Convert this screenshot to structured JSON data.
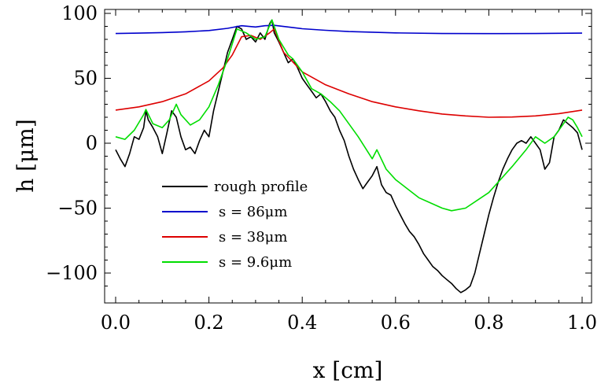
{
  "chart_data": {
    "type": "line",
    "title": "",
    "xlabel": "x [cm]",
    "ylabel": "h [μm]",
    "xlim": [
      0.0,
      1.0
    ],
    "ylim": [
      -120,
      100
    ],
    "xticks": [
      0.0,
      0.2,
      0.4,
      0.6,
      0.8,
      1.0
    ],
    "xtick_labels": [
      "0.0",
      "0.2",
      "0.4",
      "0.6",
      "0.8",
      "1.0"
    ],
    "yticks": [
      100,
      50,
      0,
      -50,
      -100
    ],
    "ytick_labels": [
      "100",
      "50",
      "0",
      "−50",
      "−100"
    ],
    "grid": false,
    "legend_position": "lower-left",
    "series": [
      {
        "name": "rough profile",
        "color": "#000000",
        "x": [
          0.0,
          0.01,
          0.02,
          0.03,
          0.04,
          0.05,
          0.06,
          0.065,
          0.07,
          0.08,
          0.09,
          0.1,
          0.11,
          0.12,
          0.13,
          0.14,
          0.15,
          0.16,
          0.17,
          0.18,
          0.19,
          0.2,
          0.21,
          0.22,
          0.23,
          0.24,
          0.25,
          0.26,
          0.27,
          0.28,
          0.29,
          0.3,
          0.31,
          0.32,
          0.33,
          0.335,
          0.34,
          0.35,
          0.36,
          0.37,
          0.38,
          0.39,
          0.4,
          0.41,
          0.42,
          0.43,
          0.44,
          0.45,
          0.46,
          0.47,
          0.48,
          0.49,
          0.5,
          0.51,
          0.52,
          0.53,
          0.54,
          0.55,
          0.56,
          0.57,
          0.58,
          0.59,
          0.6,
          0.61,
          0.62,
          0.63,
          0.64,
          0.65,
          0.66,
          0.67,
          0.68,
          0.69,
          0.7,
          0.71,
          0.72,
          0.73,
          0.74,
          0.75,
          0.76,
          0.77,
          0.78,
          0.79,
          0.8,
          0.81,
          0.82,
          0.83,
          0.84,
          0.85,
          0.86,
          0.87,
          0.88,
          0.89,
          0.9,
          0.91,
          0.92,
          0.93,
          0.94,
          0.95,
          0.96,
          0.97,
          0.98,
          0.99,
          1.0
        ],
        "y": [
          -5,
          -12,
          -18,
          -8,
          5,
          3,
          12,
          25,
          18,
          12,
          5,
          -8,
          8,
          25,
          20,
          5,
          -5,
          -3,
          -8,
          2,
          10,
          5,
          25,
          40,
          55,
          70,
          80,
          90,
          88,
          80,
          82,
          78,
          85,
          80,
          92,
          95,
          85,
          78,
          70,
          62,
          65,
          58,
          50,
          45,
          40,
          35,
          38,
          32,
          25,
          20,
          10,
          2,
          -10,
          -20,
          -28,
          -35,
          -30,
          -25,
          -18,
          -32,
          -38,
          -40,
          -48,
          -55,
          -62,
          -68,
          -72,
          -78,
          -85,
          -90,
          -95,
          -98,
          -102,
          -105,
          -108,
          -112,
          -115,
          -113,
          -110,
          -100,
          -85,
          -70,
          -55,
          -42,
          -30,
          -20,
          -12,
          -5,
          0,
          2,
          0,
          5,
          0,
          -5,
          -20,
          -15,
          5,
          10,
          18,
          15,
          12,
          8,
          -5
        ]
      },
      {
        "name": "s = 86μm",
        "color": "#0000cc",
        "x": [
          0.0,
          0.05,
          0.1,
          0.15,
          0.2,
          0.24,
          0.27,
          0.3,
          0.32,
          0.34,
          0.37,
          0.4,
          0.45,
          0.5,
          0.6,
          0.7,
          0.8,
          0.9,
          1.0
        ],
        "y": [
          84.5,
          84.8,
          85.2,
          85.8,
          86.8,
          88.5,
          90.5,
          89.5,
          90.5,
          90.8,
          89.5,
          88.2,
          87,
          86,
          85,
          84.5,
          84.4,
          84.5,
          84.8
        ]
      },
      {
        "name": "s = 38μm",
        "color": "#dd0000",
        "x": [
          0.0,
          0.05,
          0.1,
          0.15,
          0.2,
          0.23,
          0.25,
          0.27,
          0.29,
          0.31,
          0.33,
          0.34,
          0.36,
          0.4,
          0.45,
          0.5,
          0.55,
          0.6,
          0.65,
          0.7,
          0.75,
          0.8,
          0.85,
          0.9,
          0.95,
          1.0
        ],
        "y": [
          25.5,
          28,
          32,
          38,
          48,
          58,
          68,
          82,
          83,
          80,
          85,
          88,
          70,
          55,
          45,
          38,
          32,
          28,
          25,
          22.5,
          21,
          20,
          20.2,
          21,
          22.8,
          25.5
        ]
      },
      {
        "name": "s = 9.6μm",
        "color": "#00dd00",
        "x": [
          0.0,
          0.02,
          0.04,
          0.06,
          0.065,
          0.08,
          0.1,
          0.115,
          0.13,
          0.14,
          0.16,
          0.18,
          0.2,
          0.22,
          0.24,
          0.26,
          0.28,
          0.3,
          0.32,
          0.335,
          0.35,
          0.37,
          0.38,
          0.4,
          0.42,
          0.44,
          0.46,
          0.48,
          0.5,
          0.52,
          0.55,
          0.56,
          0.58,
          0.6,
          0.65,
          0.7,
          0.72,
          0.75,
          0.8,
          0.85,
          0.88,
          0.9,
          0.92,
          0.94,
          0.96,
          0.97,
          0.98,
          0.99,
          1.0
        ],
        "y": [
          5,
          3,
          10,
          22,
          26,
          15,
          12,
          18,
          30,
          22,
          14,
          18,
          28,
          45,
          65,
          88,
          85,
          80,
          82,
          95,
          80,
          68,
          65,
          55,
          42,
          38,
          32,
          25,
          15,
          5,
          -12,
          -5,
          -20,
          -28,
          -42,
          -50,
          -52,
          -50,
          -38,
          -18,
          -5,
          5,
          0,
          5,
          15,
          20,
          18,
          12,
          5
        ]
      }
    ]
  }
}
